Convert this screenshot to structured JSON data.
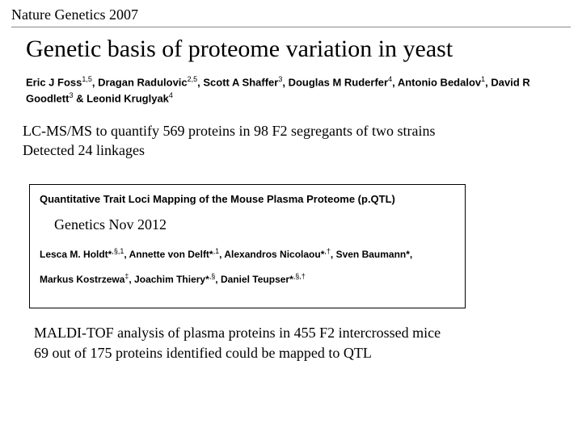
{
  "journal1": "Nature Genetics 2007",
  "title1": "Genetic basis of proteome variation in yeast",
  "authors1_html": "Eric J Foss<sup>1,5</sup>, Dragan Radulovic<sup>2,5</sup>, Scott A Shaffer<sup>3</sup>, Douglas M Ruderfer<sup>4</sup>, Antonio Bedalov<sup>1</sup>, David R Goodlett<sup>3</sup> & Leonid Kruglyak<sup>4</sup>",
  "note1_line1": "LC-MS/MS to quantify 569 proteins in 98 F2 segregants of two strains",
  "note1_line2": "Detected 24 linkages",
  "box_title": "Quantitative Trait Loci Mapping of the Mouse Plasma Proteome (p.QTL)",
  "journal2": "Genetics Nov 2012",
  "authors2_row1": "Lesca M. Holdt*<sup>,§,1</sup>, Annette von Delft*<sup>,1</sup>, Alexandros Nicolaou*<sup>,†</sup>, Sven Baumann*,",
  "authors2_row2": "Markus Kostrzewa<sup>‡</sup>, Joachim Thiery*<sup>,§</sup>, Daniel Teupser*<sup>,§,†</sup>",
  "note2_line1": "MALDI-TOF analysis of plasma proteins in 455 F2 intercrossed mice",
  "note2_line2": "69 out of 175 proteins identified could be mapped to QTL"
}
